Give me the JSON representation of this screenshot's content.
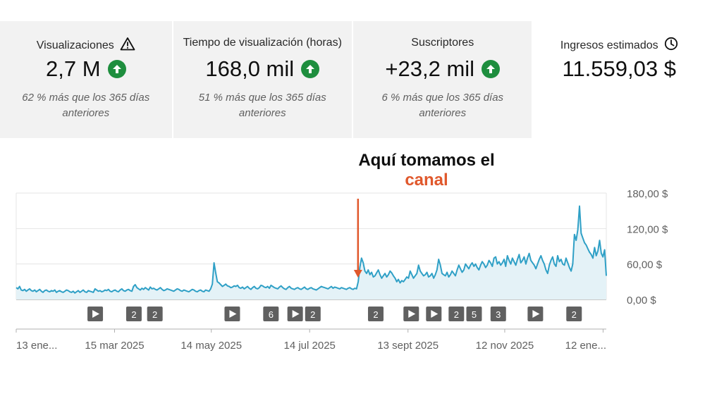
{
  "metrics": [
    {
      "title": "Visualizaciones",
      "title_icon": "warning-icon",
      "value": "2,7 M",
      "trend": "up-arrow-icon",
      "subtitle": "62 % más que los 365 días anteriores"
    },
    {
      "title": "Tiempo de visualización (horas)",
      "value": "168,0 mil",
      "trend": "up-arrow-icon",
      "subtitle": "51 % más que los 365 días anteriores"
    },
    {
      "title": "Suscriptores",
      "value": "+23,2 mil",
      "trend": "up-arrow-icon",
      "subtitle": "6 % más que los 365 días anteriores"
    },
    {
      "title": "Ingresos estimados",
      "title_icon": "clock-icon",
      "value": "11.559,03 $"
    }
  ],
  "annotation": {
    "line1": "Aquí tomamos el",
    "highlight": "canal",
    "highlight_color": "#e0582c"
  },
  "chart_data": {
    "type": "area",
    "y_unit": "$",
    "ylim": [
      0,
      180
    ],
    "y_ticks": [
      "180,00 $",
      "120,00 $",
      "60,00 $",
      "0,00 $"
    ],
    "y_tick_values": [
      180,
      120,
      60,
      0
    ],
    "x_ticks": [
      "13 ene...",
      "15 mar 2025",
      "14 may 2025",
      "14 jul 2025",
      "13 sept 2025",
      "12 nov 2025",
      "12 ene..."
    ],
    "x_tick_days": [
      0,
      61,
      121,
      182,
      243,
      303,
      364
    ],
    "x_range_days": [
      0,
      366
    ],
    "line_color": "#2fa0c6",
    "fill_color": "#e4f2f7",
    "series": [
      {
        "values": [
          20,
          18,
          22,
          16,
          15,
          17,
          14,
          16,
          18,
          15,
          14,
          16,
          13,
          15,
          17,
          14,
          12,
          15,
          16,
          14,
          13,
          15,
          14,
          16,
          12,
          14,
          15,
          13,
          12,
          14,
          16,
          15,
          13,
          12,
          14,
          11,
          13,
          15,
          12,
          14,
          16,
          13,
          12,
          15,
          14,
          13,
          12,
          18,
          16,
          14,
          15,
          13,
          14,
          16,
          15,
          17,
          14,
          13,
          15,
          16,
          14,
          13,
          16,
          18,
          15,
          14,
          16,
          17,
          15,
          14,
          22,
          25,
          20,
          18,
          16,
          19,
          17,
          20,
          18,
          16,
          21,
          18,
          19,
          17,
          16,
          18,
          20,
          17,
          15,
          16,
          18,
          17,
          16,
          15,
          14,
          16,
          18,
          17,
          15,
          14,
          16,
          15,
          14,
          13,
          15,
          17,
          16,
          14,
          13,
          15,
          16,
          14,
          13,
          16,
          15,
          14,
          18,
          26,
          62,
          45,
          30,
          28,
          25,
          22,
          24,
          26,
          23,
          22,
          20,
          21,
          23,
          22,
          24,
          20,
          19,
          21,
          18,
          20,
          22,
          19,
          17,
          20,
          22,
          19,
          18,
          20,
          24,
          23,
          21,
          20,
          22,
          19,
          24,
          22,
          20,
          19,
          18,
          21,
          23,
          20,
          18,
          17,
          20,
          22,
          19,
          18,
          17,
          19,
          20,
          18,
          17,
          19,
          21,
          18,
          17,
          19,
          20,
          18,
          17,
          16,
          18,
          20,
          22,
          21,
          20,
          19,
          18,
          20,
          22,
          19,
          21,
          20,
          19,
          18,
          20,
          19,
          18,
          17,
          19,
          20,
          18,
          17,
          19,
          18,
          30,
          55,
          70,
          62,
          48,
          44,
          50,
          42,
          46,
          38,
          40,
          45,
          50,
          42,
          36,
          40,
          44,
          38,
          42,
          48,
          45,
          40,
          36,
          30,
          34,
          28,
          32,
          30,
          34,
          38,
          36,
          48,
          42,
          36,
          40,
          44,
          58,
          48,
          44,
          40,
          42,
          46,
          38,
          40,
          44,
          36,
          42,
          50,
          68,
          58,
          44,
          42,
          40,
          46,
          38,
          42,
          48,
          44,
          40,
          50,
          58,
          52,
          46,
          50,
          60,
          56,
          52,
          58,
          62,
          56,
          60,
          54,
          50,
          58,
          64,
          60,
          54,
          58,
          66,
          62,
          56,
          70,
          72,
          60,
          64,
          58,
          62,
          68,
          56,
          74,
          66,
          60,
          70,
          64,
          58,
          68,
          76,
          62,
          66,
          72,
          60,
          70,
          78,
          66,
          62,
          58,
          52,
          60,
          68,
          74,
          66,
          60,
          50,
          44,
          58,
          66,
          72,
          60,
          56,
          74,
          64,
          68,
          60,
          58,
          70,
          62,
          54,
          48,
          60,
          110,
          100,
          118,
          158,
          112,
          104,
          96,
          92,
          86,
          80,
          76,
          70,
          88,
          74,
          82,
          100,
          78,
          72,
          84,
          40
        ]
      }
    ],
    "annotation_marker_day": 212,
    "markers": [
      {
        "label": "",
        "icon": "play-icon",
        "day": 49
      },
      {
        "label": "2",
        "day": 73
      },
      {
        "label": "2",
        "day": 86
      },
      {
        "label": "",
        "icon": "play-icon",
        "day": 134
      },
      {
        "label": "6",
        "day": 158
      },
      {
        "label": "",
        "icon": "play-icon",
        "day": 173
      },
      {
        "label": "2",
        "day": 184
      },
      {
        "label": "2",
        "day": 223
      },
      {
        "label": "",
        "icon": "play-icon",
        "day": 245
      },
      {
        "label": "",
        "icon": "play-icon",
        "day": 259
      },
      {
        "label": "2",
        "day": 273
      },
      {
        "label": "5",
        "day": 284
      },
      {
        "label": "3",
        "day": 299
      },
      {
        "label": "",
        "icon": "play-icon",
        "day": 322
      },
      {
        "label": "2",
        "day": 346
      }
    ],
    "marker_color": "#606060",
    "annotation_arrow_color": "#e0582c"
  }
}
